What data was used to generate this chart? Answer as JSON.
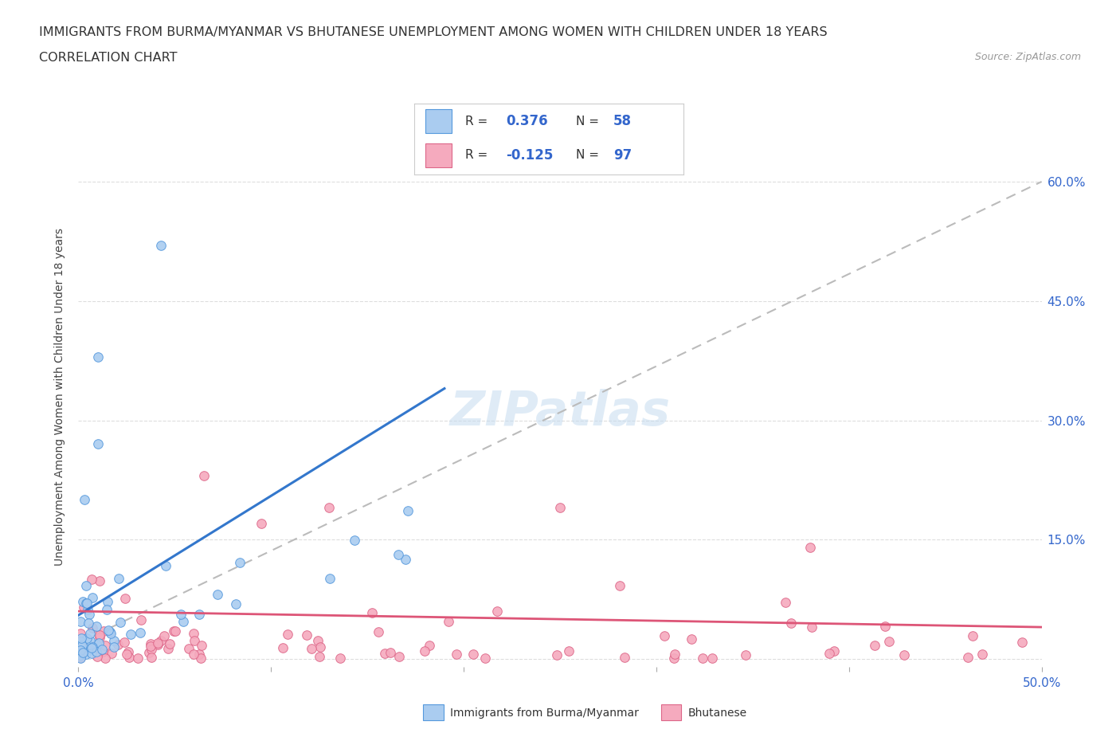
{
  "title_line1": "IMMIGRANTS FROM BURMA/MYANMAR VS BHUTANESE UNEMPLOYMENT AMONG WOMEN WITH CHILDREN UNDER 18 YEARS",
  "title_line2": "CORRELATION CHART",
  "source": "Source: ZipAtlas.com",
  "ylabel": "Unemployment Among Women with Children Under 18 years",
  "xlim": [
    0.0,
    0.5
  ],
  "ylim": [
    -0.01,
    0.67
  ],
  "R_burma": 0.376,
  "N_burma": 58,
  "R_bhutan": -0.125,
  "N_bhutan": 97,
  "color_burma": "#aaccf0",
  "color_bhutan": "#f5aabe",
  "edge_color_burma": "#5599dd",
  "edge_color_bhutan": "#dd6688",
  "line_color_burma": "#3377cc",
  "line_color_bhutan": "#dd5577",
  "dash_color": "#bbbbbb",
  "watermark": "ZIPatlas",
  "bg_color": "#ffffff",
  "grid_color": "#dddddd"
}
